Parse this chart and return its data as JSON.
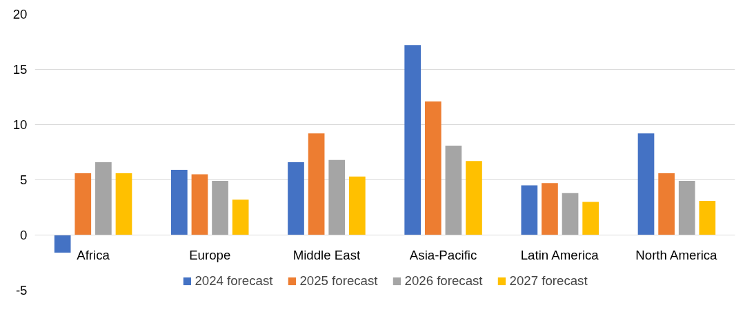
{
  "chart_data": {
    "type": "bar",
    "categories": [
      "Africa",
      "Europe",
      "Middle East",
      "Asia-Pacific",
      "Latin America",
      "North America"
    ],
    "series": [
      {
        "name": "2024 forecast",
        "color": "#4472c4",
        "values": [
          -1.6,
          5.9,
          6.6,
          17.2,
          4.5,
          9.2
        ]
      },
      {
        "name": "2025 forecast",
        "color": "#ed7d31",
        "values": [
          5.6,
          5.5,
          9.2,
          12.1,
          4.7,
          5.6
        ]
      },
      {
        "name": "2026 forecast",
        "color": "#a5a5a5",
        "values": [
          6.6,
          4.9,
          6.8,
          8.1,
          3.8,
          4.9
        ]
      },
      {
        "name": "2027 forecast",
        "color": "#ffc000",
        "values": [
          5.6,
          3.2,
          5.3,
          6.7,
          3.0,
          3.1
        ]
      }
    ],
    "ylim": [
      -5,
      20
    ],
    "yticks": [
      20,
      15,
      10,
      5,
      0,
      -5
    ],
    "grid": "y",
    "legend": "bottom"
  }
}
